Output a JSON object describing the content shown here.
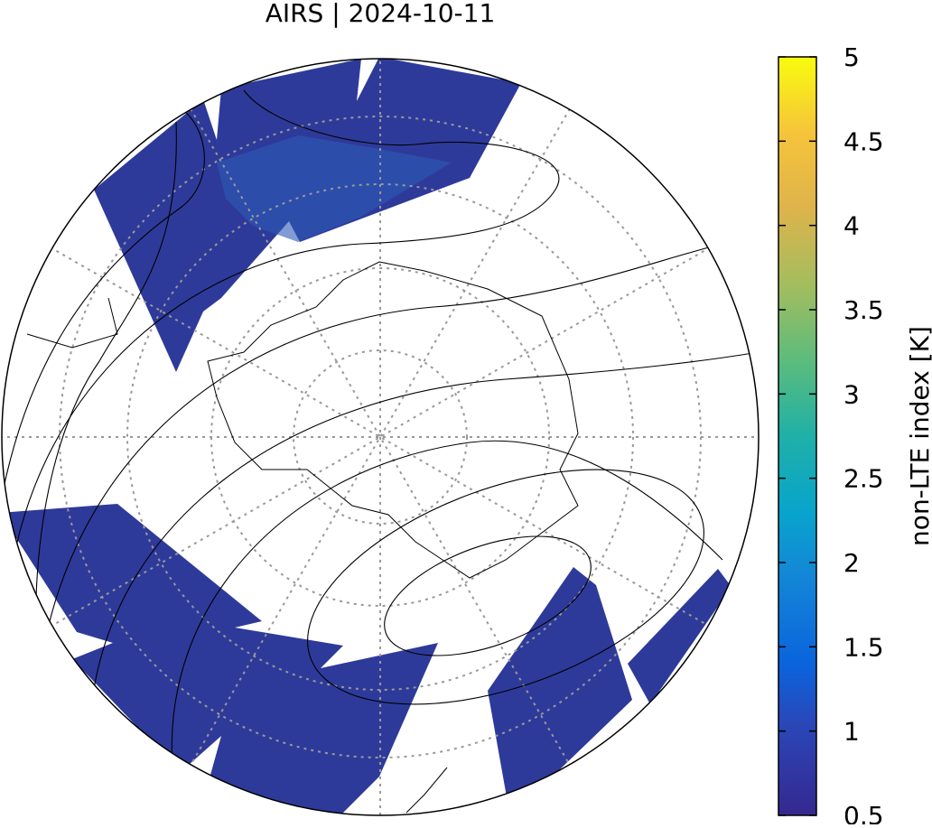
{
  "title": "AIRS | 2024-10-11",
  "colorbar": {
    "label": "non-LTE index [K]",
    "lim": [
      0.5,
      5
    ],
    "ticks": [
      0.5,
      1,
      1.5,
      2,
      2.5,
      3,
      3.5,
      4,
      4.5,
      5
    ]
  }
}
